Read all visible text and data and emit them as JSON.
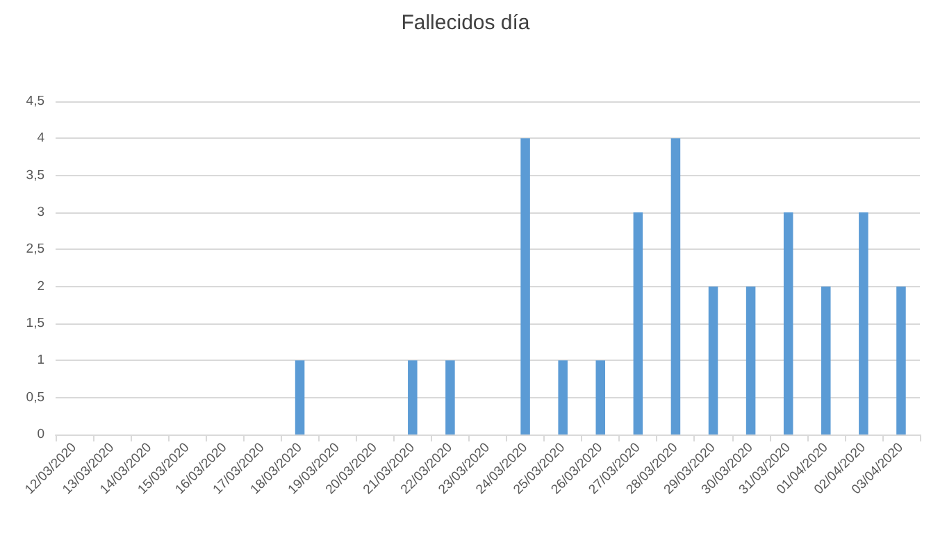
{
  "chart_data": {
    "type": "bar",
    "title": "Fallecidos día",
    "categories": [
      "12/03/2020",
      "13/03/2020",
      "14/03/2020",
      "15/03/2020",
      "16/03/2020",
      "17/03/2020",
      "18/03/2020",
      "19/03/2020",
      "20/03/2020",
      "21/03/2020",
      "22/03/2020",
      "23/03/2020",
      "24/03/2020",
      "25/03/2020",
      "26/03/2020",
      "27/03/2020",
      "28/03/2020",
      "29/03/2020",
      "30/03/2020",
      "31/03/2020",
      "01/04/2020",
      "02/04/2020",
      "03/04/2020"
    ],
    "values": [
      0,
      0,
      0,
      0,
      0,
      0,
      1,
      0,
      0,
      1,
      1,
      0,
      4,
      1,
      1,
      3,
      4,
      2,
      2,
      3,
      2,
      3,
      2
    ],
    "color": "#5b9bd5",
    "ylim": [
      0,
      4.5
    ],
    "yticks": [
      0,
      {
        "value": 0.5,
        "label": "0,5"
      },
      1,
      {
        "value": 1.5,
        "label": "1,5"
      },
      2,
      {
        "value": 2.5,
        "label": "2,5"
      },
      3,
      {
        "value": 3.5,
        "label": "3,5"
      },
      4,
      {
        "value": 4.5,
        "label": "4,5"
      }
    ],
    "grid": "y"
  }
}
